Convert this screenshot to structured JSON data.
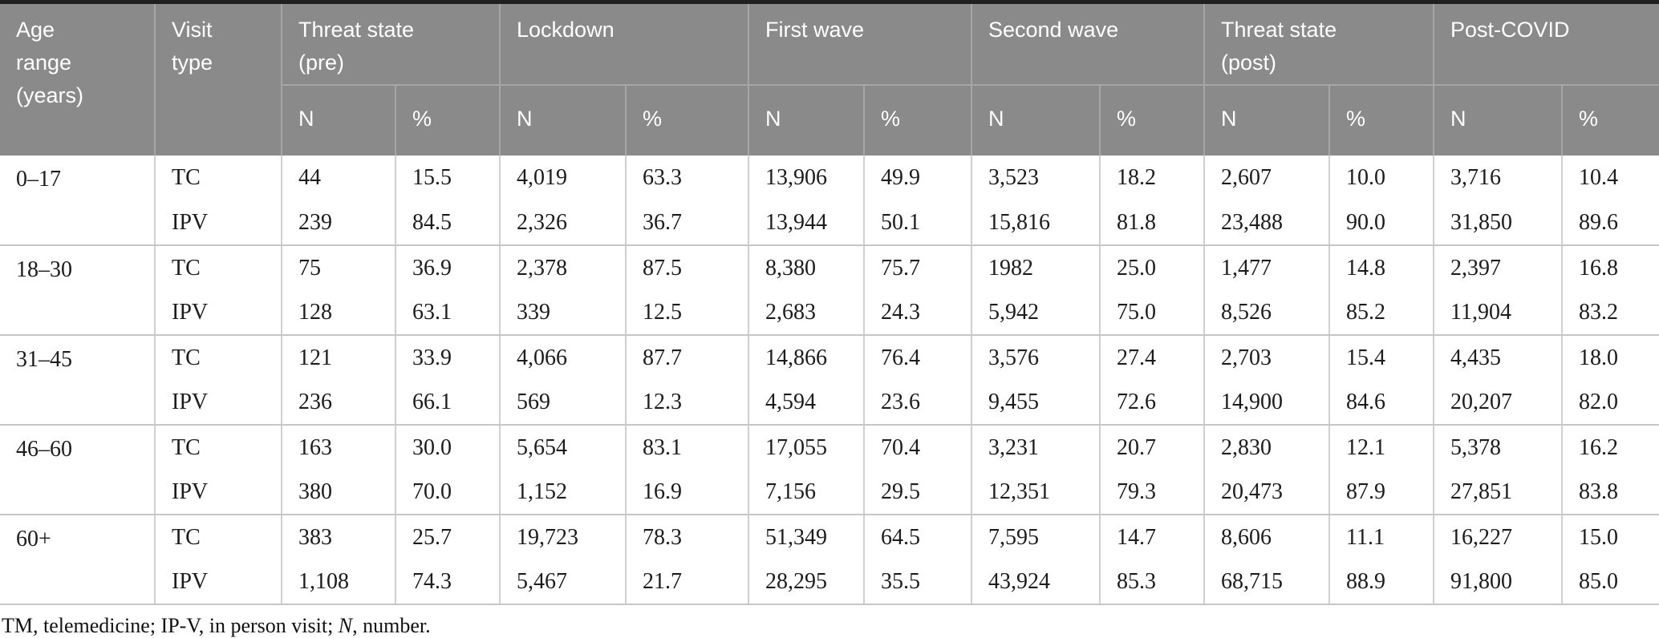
{
  "table": {
    "columns": {
      "age_range_label": "Age range (years)",
      "visit_type_label": "Visit type",
      "n_label": "N",
      "pct_label": "%",
      "groups": [
        "Threat state (pre)",
        "Lockdown",
        "First wave",
        "Second wave",
        "Threat state (post)",
        "Post-COVID"
      ]
    },
    "rows": [
      {
        "age_range": "0–17",
        "visits": [
          {
            "type": "TC",
            "values": [
              "44",
              "15.5",
              "4,019",
              "63.3",
              "13,906",
              "49.9",
              "3,523",
              "18.2",
              "2,607",
              "10.0",
              "3,716",
              "10.4"
            ]
          },
          {
            "type": "IPV",
            "values": [
              "239",
              "84.5",
              "2,326",
              "36.7",
              "13,944",
              "50.1",
              "15,816",
              "81.8",
              "23,488",
              "90.0",
              "31,850",
              "89.6"
            ]
          }
        ]
      },
      {
        "age_range": "18–30",
        "visits": [
          {
            "type": "TC",
            "values": [
              "75",
              "36.9",
              "2,378",
              "87.5",
              "8,380",
              "75.7",
              "1982",
              "25.0",
              "1,477",
              "14.8",
              "2,397",
              "16.8"
            ]
          },
          {
            "type": "IPV",
            "values": [
              "128",
              "63.1",
              "339",
              "12.5",
              "2,683",
              "24.3",
              "5,942",
              "75.0",
              "8,526",
              "85.2",
              "11,904",
              "83.2"
            ]
          }
        ]
      },
      {
        "age_range": "31–45",
        "visits": [
          {
            "type": "TC",
            "values": [
              "121",
              "33.9",
              "4,066",
              "87.7",
              "14,866",
              "76.4",
              "3,576",
              "27.4",
              "2,703",
              "15.4",
              "4,435",
              "18.0"
            ]
          },
          {
            "type": "IPV",
            "values": [
              "236",
              "66.1",
              "569",
              "12.3",
              "4,594",
              "23.6",
              "9,455",
              "72.6",
              "14,900",
              "84.6",
              "20,207",
              "82.0"
            ]
          }
        ]
      },
      {
        "age_range": "46–60",
        "visits": [
          {
            "type": "TC",
            "values": [
              "163",
              "30.0",
              "5,654",
              "83.1",
              "17,055",
              "70.4",
              "3,231",
              "20.7",
              "2,830",
              "12.1",
              "5,378",
              "16.2"
            ]
          },
          {
            "type": "IPV",
            "values": [
              "380",
              "70.0",
              "1,152",
              "16.9",
              "7,156",
              "29.5",
              "12,351",
              "79.3",
              "20,473",
              "87.9",
              "27,851",
              "83.8"
            ]
          }
        ]
      },
      {
        "age_range": "60+",
        "visits": [
          {
            "type": "TC",
            "values": [
              "383",
              "25.7",
              "19,723",
              "78.3",
              "51,349",
              "64.5",
              "7,595",
              "14.7",
              "8,606",
              "11.1",
              "16,227",
              "15.0"
            ]
          },
          {
            "type": "IPV",
            "values": [
              "1,108",
              "74.3",
              "5,467",
              "21.7",
              "28,295",
              "35.5",
              "43,924",
              "85.3",
              "68,715",
              "88.9",
              "91,800",
              "85.0"
            ]
          }
        ]
      }
    ],
    "footnote": {
      "prefix": "TM, telemedicine; IP-V, in person visit; ",
      "italic": "N",
      "suffix": ", number."
    }
  },
  "colors": {
    "header_bg": "#8a8a8a",
    "header_text": "#ffffff",
    "header_divider": "#a6a6a6",
    "top_border": "#202020",
    "body_grid": "#cccccc",
    "body_text": "#1c1c1c"
  }
}
